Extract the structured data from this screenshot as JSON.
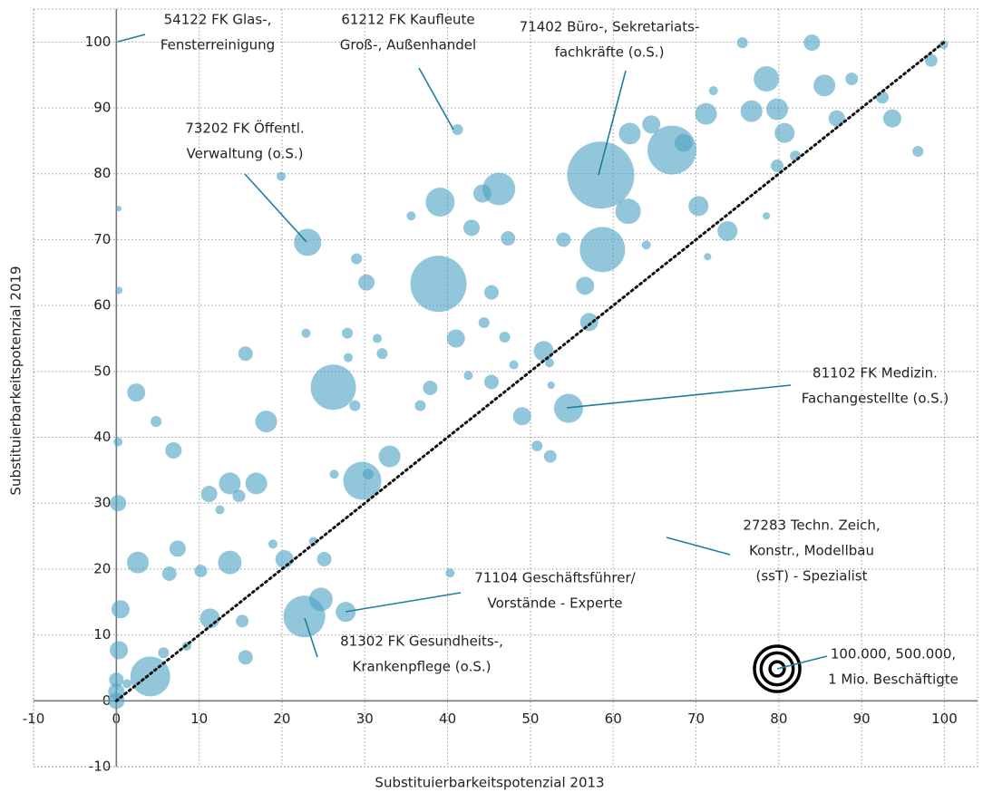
{
  "chart_data": {
    "type": "bubble",
    "x_label": "Substituierbarkeitspotenzial 2013",
    "y_label": "Substituierbarkeitspotenzial 2019",
    "xlim": [
      -10,
      104
    ],
    "ylim": [
      -10,
      105
    ],
    "xticks": [
      -10,
      0,
      10,
      20,
      30,
      40,
      50,
      60,
      70,
      80,
      90,
      100
    ],
    "yticks": [
      -10,
      0,
      10,
      20,
      30,
      40,
      50,
      60,
      70,
      80,
      90,
      100
    ],
    "grid": true,
    "diagonal": true,
    "series": [
      {
        "color": "#4fa3c4",
        "x": [
          58.5,
          58.7,
          38.9,
          26.2,
          22.7,
          4.1,
          67.1,
          29.7,
          23.1,
          46.2,
          39.1,
          54.6,
          73.8,
          61.8,
          24.7,
          27.7,
          78.5,
          76.7,
          2.6,
          13.7,
          11.3,
          18.1,
          13.7,
          16.9,
          0.5,
          0.3,
          0.2,
          2.4,
          56.6,
          62.0,
          64.6,
          68.5,
          70.3,
          71.2,
          85.5,
          79.8,
          80.7,
          84.0,
          87.0,
          93.7,
          99.9,
          98.4,
          42.9,
          44.2,
          30.2,
          33.0,
          51.6,
          49.0,
          45.3,
          41.0,
          37.9,
          45.3,
          15.6,
          6.9,
          7.4,
          6.4,
          10.2,
          15.2,
          15.6,
          0,
          11.2,
          14.8,
          20.3,
          25.1,
          50.8,
          52.4,
          47.3,
          54.0,
          57.1,
          75.6,
          88.8,
          92.5,
          96.8,
          82.0,
          79.8,
          19.9,
          41.2,
          29.0,
          35.6,
          27.9,
          31.5,
          28.0,
          22.9,
          32.1,
          42.5,
          44.4,
          46.9,
          48.0,
          52.3,
          52.5,
          36.7,
          28.8,
          30.4,
          26.3,
          4.8,
          0.2,
          0.3,
          0.3,
          1.3,
          0,
          0,
          5.7,
          8.5,
          18.9,
          23.8,
          12.5,
          40.3,
          78.5,
          71.4,
          64.0,
          72.1
        ],
        "y": [
          79.8,
          68.5,
          63.3,
          47.6,
          12.8,
          3.7,
          83.6,
          33.4,
          69.6,
          77.7,
          75.7,
          44.4,
          71.3,
          74.3,
          15.4,
          13.5,
          94.4,
          89.5,
          21.0,
          21.0,
          12.5,
          42.4,
          33.0,
          33.0,
          13.9,
          7.7,
          30.0,
          46.8,
          63.0,
          86.1,
          87.5,
          84.7,
          75.1,
          89.1,
          93.4,
          89.8,
          86.2,
          99.9,
          88.4,
          88.4,
          99.6,
          97.2,
          71.8,
          77.0,
          63.5,
          37.1,
          53.1,
          43.2,
          62.0,
          55.0,
          47.5,
          48.4,
          52.7,
          38.0,
          23.1,
          19.3,
          19.7,
          12.1,
          6.6,
          0,
          31.4,
          31.1,
          21.5,
          21.5,
          38.7,
          37.1,
          70.2,
          70.0,
          57.5,
          99.9,
          94.4,
          91.6,
          83.4,
          82.7,
          81.2,
          79.6,
          86.7,
          67.1,
          73.6,
          55.8,
          55.0,
          52.1,
          55.8,
          52.7,
          49.4,
          57.4,
          55.2,
          51.0,
          51.3,
          47.9,
          44.8,
          44.8,
          34.4,
          34.4,
          42.4,
          39.3,
          62.3,
          74.7,
          2.6,
          3.2,
          1.4,
          7.3,
          8.3,
          23.8,
          24.2,
          29.0,
          19.4,
          73.6,
          67.4,
          69.2,
          92.6
        ],
        "sizes": [
          2190000,
          1000000,
          1538000,
          1000000,
          846000,
          774000,
          1166000,
          706000,
          360000,
          518000,
          410000,
          410000,
          194000,
          314000,
          270000,
          194000,
          314000,
          230000,
          230000,
          270000,
          194000,
          230000,
          230000,
          230000,
          160000,
          160000,
          130000,
          160000,
          160000,
          230000,
          160000,
          160000,
          194000,
          230000,
          230000,
          230000,
          194000,
          130000,
          130000,
          160000,
          40000,
          78000,
          130000,
          160000,
          130000,
          230000,
          194000,
          160000,
          102000,
          160000,
          102000,
          102000,
          102000,
          130000,
          130000,
          102000,
          78000,
          78000,
          102000,
          130000,
          130000,
          78000,
          160000,
          102000,
          58000,
          78000,
          102000,
          102000,
          160000,
          58000,
          78000,
          78000,
          58000,
          58000,
          78000,
          40000,
          58000,
          58000,
          40000,
          58000,
          40000,
          40000,
          40000,
          58000,
          40000,
          58000,
          58000,
          40000,
          40000,
          26000,
          58000,
          58000,
          58000,
          40000,
          58000,
          40000,
          26000,
          14000,
          40000,
          102000,
          130000,
          58000,
          40000,
          40000,
          40000,
          40000,
          40000,
          26000,
          26000,
          40000,
          40000
        ]
      }
    ],
    "size_legend": {
      "values": [
        100000,
        500000,
        1000000
      ],
      "label_lines": [
        "100.000, 500.000,",
        "1 Mio. Beschäftigte"
      ]
    },
    "annotations": [
      {
        "lines": [
          "54122 FK Glas-,",
          "Fensterreinigung"
        ]
      },
      {
        "lines": [
          "61212 FK Kaufleute",
          "Groß-, Außenhandel"
        ]
      },
      {
        "lines": [
          "71402 Büro-, Sekretariats-",
          "fachkräfte (o.S.)"
        ]
      },
      {
        "lines": [
          "73202 FK Öffentl.",
          "Verwaltung (o.S.)"
        ]
      },
      {
        "lines": [
          "81102 FK Medizin.",
          "Fachangestellte (o.S.)"
        ]
      },
      {
        "lines": [
          "27283 Techn. Zeich,",
          "Konstr., Modellbau",
          "(ssT) - Spezialist"
        ]
      },
      {
        "lines": [
          "71104 Geschäftsführer/",
          "Vorstände - Experte"
        ]
      },
      {
        "lines": [
          "81302 FK Gesundheits-,",
          "Krankenpflege (o.S.)"
        ]
      }
    ]
  }
}
